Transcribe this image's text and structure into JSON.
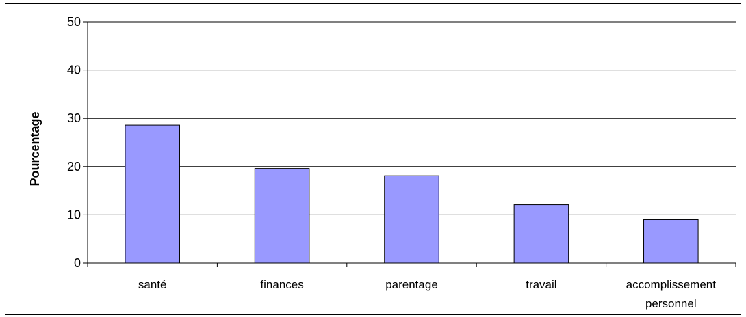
{
  "chart_data": {
    "type": "bar",
    "title": "",
    "xlabel": "",
    "ylabel": "Pourcentage",
    "categories": [
      "santé",
      "finances",
      "parentage",
      "travail",
      "accomplissement personnel"
    ],
    "category_label_lines": [
      [
        "santé"
      ],
      [
        "finances"
      ],
      [
        "parentage"
      ],
      [
        "travail"
      ],
      [
        "accomplissement",
        "personnel"
      ]
    ],
    "values": [
      28.6,
      19.6,
      18.1,
      12.1,
      9.0
    ],
    "ylim": [
      0,
      50
    ],
    "yticks": [
      0,
      10,
      20,
      30,
      40,
      50
    ],
    "grid": true,
    "legend": "none",
    "bar_color": "#9999ff",
    "bar_border_color": "#000000"
  }
}
